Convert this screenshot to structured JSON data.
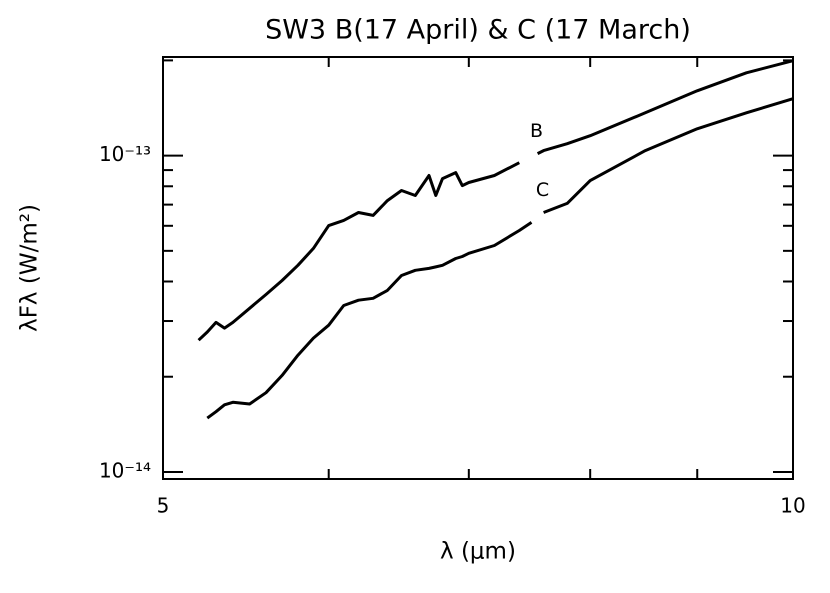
{
  "chart_data": {
    "type": "line",
    "title": "SW3 B(17 April) & C (17 March)",
    "x_label": "λ (μm)",
    "y_label": "λFλ (W/m²)",
    "x_scale": "log",
    "y_scale": "log",
    "grid": false,
    "x": [
      5.2,
      5.25,
      5.3,
      5.35,
      5.4,
      5.5,
      5.6,
      5.7,
      5.8,
      5.9,
      6.0,
      6.1,
      6.2,
      6.3,
      6.4,
      6.5,
      6.6,
      6.7,
      6.75,
      6.8,
      6.9,
      6.95,
      7.0,
      7.2,
      7.4,
      7.5,
      7.55,
      7.6,
      7.8,
      8.0,
      8.5,
      9.0,
      9.5,
      10
    ],
    "series": [
      {
        "name": "B",
        "color": "#000000",
        "values": [
          2.61e-14,
          2.77e-14,
          2.97e-14,
          2.85e-14,
          2.97e-14,
          3.29e-14,
          3.64e-14,
          4.03e-14,
          4.5e-14,
          5.09e-14,
          6.01e-14,
          6.24e-14,
          6.61e-14,
          6.47e-14,
          7.21e-14,
          7.76e-14,
          7.48e-14,
          8.65e-14,
          7.48e-14,
          8.46e-14,
          8.84e-14,
          8.04e-14,
          8.22e-14,
          8.65e-14,
          9.5e-14,
          null,
          1.015e-13,
          1.037e-13,
          1.091e-13,
          1.156e-13,
          1.366e-13,
          1.603e-13,
          1.827e-13,
          1.995e-13
        ]
      },
      {
        "name": "C",
        "color": "#000000",
        "values": [
          null,
          1.48e-14,
          1.55e-14,
          1.63e-14,
          1.66e-14,
          1.64e-14,
          1.78e-14,
          2.02e-14,
          2.34e-14,
          2.65e-14,
          2.91e-14,
          3.36e-14,
          3.49e-14,
          3.54e-14,
          3.75e-14,
          4.18e-14,
          4.34e-14,
          4.4e-14,
          4.45e-14,
          4.5e-14,
          4.73e-14,
          4.8e-14,
          4.91e-14,
          5.2e-14,
          5.8e-14,
          6.15e-14,
          null,
          6.61e-14,
          7.06e-14,
          8.34e-14,
          1.037e-13,
          1.216e-13,
          1.366e-13,
          1.513e-13
        ]
      }
    ],
    "xlim": [
      5,
      10
    ],
    "xticks": [
      5,
      10
    ],
    "xminorticks": [
      6,
      7,
      8,
      9
    ],
    "ylim": [
      9.5e-15,
      2.05e-13
    ],
    "yticks": [
      {
        "value": 1e-14,
        "label": "10⁻¹⁴"
      },
      {
        "value": 1e-13,
        "label": "10⁻¹³"
      }
    ],
    "yminorticks": [
      2e-14,
      3e-14,
      4e-14,
      5e-14,
      6e-14,
      7e-14,
      8e-14,
      9e-14,
      2e-13
    ]
  }
}
